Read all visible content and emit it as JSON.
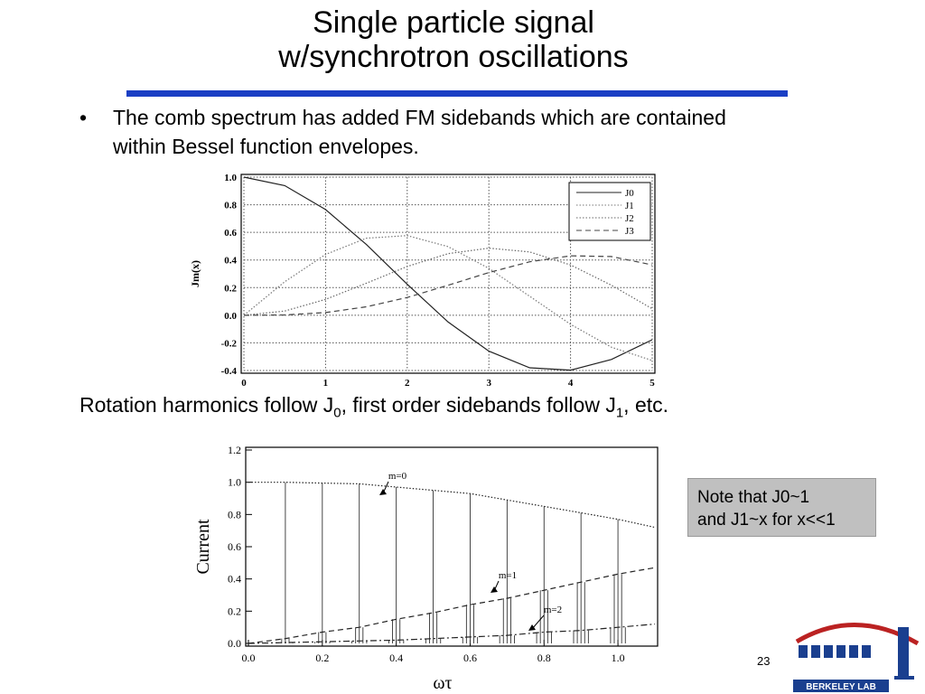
{
  "title": [
    "Single particle signal",
    "w/synchrotron oscillations"
  ],
  "bullet": "The comb spectrum has added FM sidebands which are contained within Bessel function envelopes.",
  "caption": [
    "Rotation harmonics follow J",
    "0",
    ", first order sidebands follow J",
    "1",
    ", etc."
  ],
  "note": [
    "Note that J0~1",
    "and J1~x for x<<1"
  ],
  "page_number": "23",
  "logo": "BERKELEY LAB",
  "chart_data": [
    {
      "type": "line",
      "y_label": "Jm(x)",
      "x": [
        0,
        0.5,
        1,
        1.5,
        2,
        2.5,
        3,
        3.5,
        4,
        4.5,
        5
      ],
      "series": [
        {
          "name": "J0",
          "color": "#222222",
          "style": "solid",
          "values": [
            1,
            0.9385,
            0.7652,
            0.5118,
            0.2239,
            -0.0484,
            -0.2601,
            -0.3801,
            -0.3971,
            -0.3205,
            -0.1776
          ]
        },
        {
          "name": "J1",
          "color": "#777777",
          "style": "dotted",
          "values": [
            0,
            0.2423,
            0.4401,
            0.5579,
            0.5767,
            0.4971,
            0.3391,
            0.1374,
            -0.066,
            -0.2311,
            -0.3276
          ]
        },
        {
          "name": "J2",
          "color": "#666666",
          "style": "dotted",
          "values": [
            0,
            0.0306,
            0.1149,
            0.2321,
            0.3528,
            0.4461,
            0.4861,
            0.4586,
            0.3641,
            0.2178,
            0.0466
          ]
        },
        {
          "name": "J3",
          "color": "#444444",
          "style": "dashed",
          "values": [
            0,
            0.0026,
            0.0196,
            0.061,
            0.1289,
            0.2166,
            0.3091,
            0.3868,
            0.4302,
            0.4247,
            0.3648
          ]
        }
      ],
      "xlim": [
        0,
        5
      ],
      "xticks": [
        0,
        1,
        2,
        3,
        4,
        5
      ],
      "ylim": [
        -0.4,
        1
      ],
      "yticks": [
        -0.4,
        -0.2,
        {
          "value": 0,
          "label": "0.0"
        },
        0.2,
        0.4,
        0.6,
        0.8,
        {
          "value": 1,
          "label": "1.0"
        }
      ],
      "grid": true,
      "legend": "top-right"
    },
    {
      "type": "stem",
      "x_label": "ωτ",
      "y_label": "Current",
      "envelopes": [
        {
          "label": "m=0",
          "style": "dotted",
          "x": [
            0,
            0.1,
            0.2,
            0.3,
            0.4,
            0.5,
            0.6,
            0.7,
            0.8,
            0.9,
            1,
            1.1
          ],
          "values": [
            1,
            1,
            0.995,
            0.99,
            0.97,
            0.95,
            0.93,
            0.89,
            0.85,
            0.81,
            0.77,
            0.72
          ]
        },
        {
          "label": "m=1",
          "style": "dashed",
          "x": [
            0,
            0.1,
            0.2,
            0.3,
            0.4,
            0.5,
            0.6,
            0.7,
            0.8,
            0.9,
            1,
            1.1
          ],
          "values": [
            0,
            0.03,
            0.07,
            0.1,
            0.15,
            0.19,
            0.24,
            0.28,
            0.33,
            0.38,
            0.43,
            0.47
          ]
        },
        {
          "label": "m=2",
          "style": "dashdot",
          "x": [
            0,
            0.1,
            0.2,
            0.3,
            0.4,
            0.5,
            0.6,
            0.7,
            0.8,
            0.9,
            1,
            1.1
          ],
          "values": [
            0,
            0.005,
            0.01,
            0.015,
            0.02,
            0.03,
            0.04,
            0.05,
            0.07,
            0.08,
            0.1,
            0.12
          ]
        }
      ],
      "stems": [
        {
          "x": [
            0.1,
            0.2,
            0.3,
            0.4,
            0.5,
            0.6,
            0.7,
            0.8,
            0.9,
            1
          ],
          "values": [
            1,
            0.995,
            0.99,
            0.97,
            0.95,
            0.93,
            0.89,
            0.85,
            0.81,
            0.77
          ]
        },
        {
          "x": [
            0.09,
            0.11,
            0.19,
            0.21,
            0.29,
            0.31,
            0.39,
            0.41,
            0.49,
            0.51,
            0.59,
            0.61,
            0.69,
            0.71,
            0.79,
            0.81,
            0.89,
            0.91,
            0.99,
            1.01
          ],
          "values": [
            0.03,
            0.03,
            0.07,
            0.07,
            0.1,
            0.1,
            0.15,
            0.15,
            0.19,
            0.19,
            0.24,
            0.24,
            0.28,
            0.28,
            0.33,
            0.33,
            0.38,
            0.38,
            0.43,
            0.43
          ]
        },
        {
          "x": [
            0.08,
            0.12,
            0.18,
            0.22,
            0.28,
            0.32,
            0.38,
            0.42,
            0.48,
            0.52,
            0.58,
            0.62,
            0.68,
            0.72,
            0.78,
            0.82,
            0.88,
            0.92,
            0.98,
            1.02
          ],
          "values": [
            0.005,
            0.005,
            0.01,
            0.01,
            0.015,
            0.015,
            0.02,
            0.02,
            0.03,
            0.03,
            0.04,
            0.04,
            0.05,
            0.05,
            0.07,
            0.07,
            0.08,
            0.08,
            0.1,
            0.1
          ]
        }
      ],
      "xlim": [
        0,
        1.1
      ],
      "xticks": [
        {
          "value": 0,
          "label": "0.0"
        },
        0.2,
        0.4,
        0.6,
        0.8,
        {
          "value": 1,
          "label": "1.0"
        }
      ],
      "ylim": [
        0,
        1.2
      ],
      "yticks": [
        {
          "value": 0,
          "label": "0.0"
        },
        0.2,
        0.4,
        0.6,
        0.8,
        {
          "value": 1,
          "label": "1.0"
        },
        1.2
      ],
      "grid": false
    }
  ]
}
